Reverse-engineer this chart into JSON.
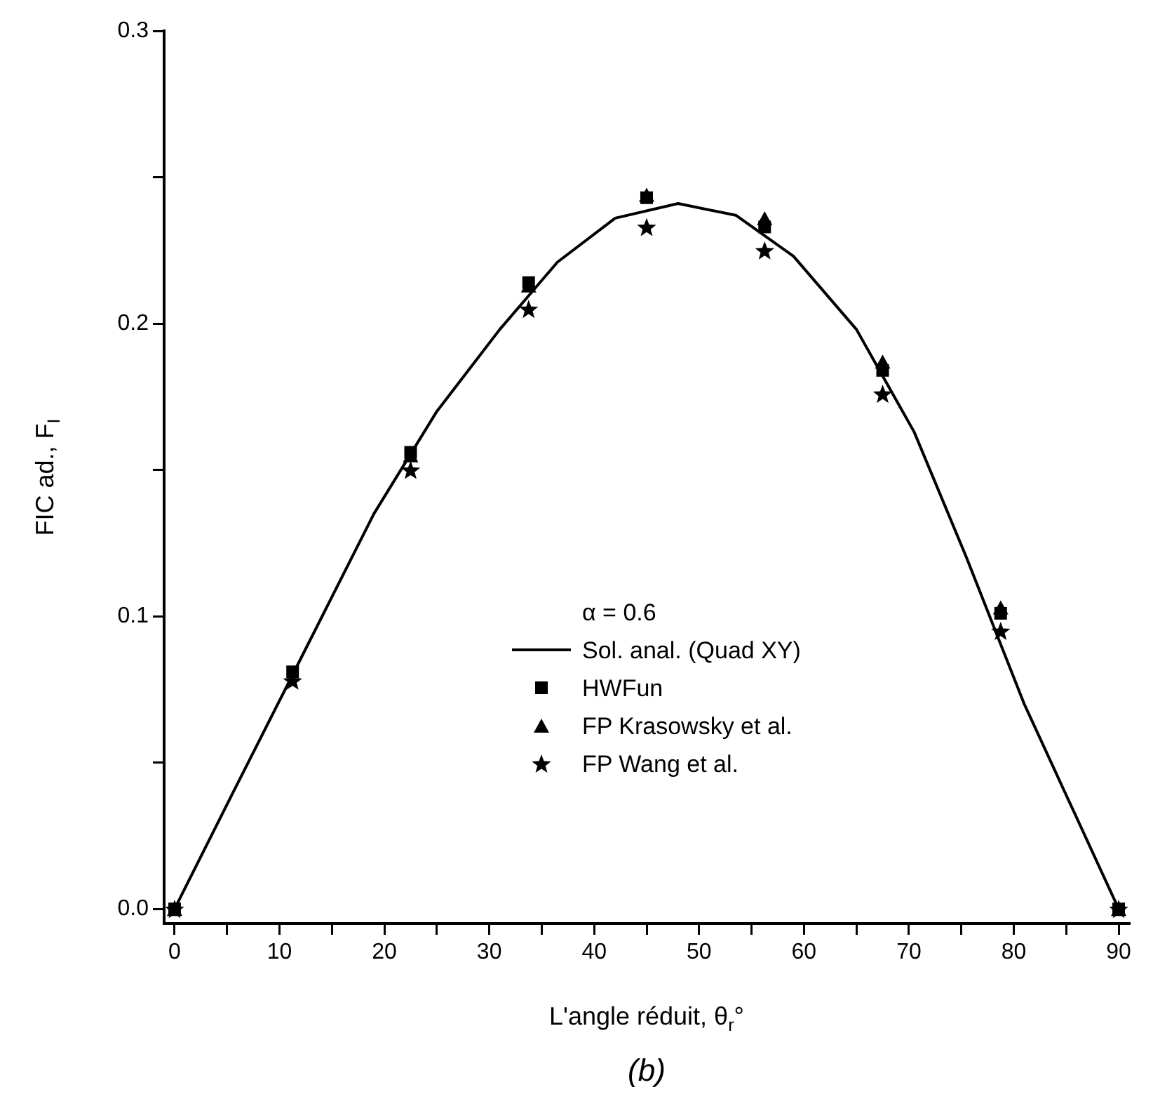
{
  "chart_data": {
    "type": "scatter",
    "xlabel": "L'angle réduit, θ$_{r}$°",
    "ylabel": "FIC ad., F$_{I}$",
    "annotations": [
      "(b)"
    ],
    "legend_title": "α = 0.6",
    "legend": "bottom",
    "grid": false,
    "xlim": [
      -1,
      91
    ],
    "xticks": [
      0,
      {
        "value": 5,
        "label": null
      },
      10,
      {
        "value": 15,
        "label": null
      },
      20,
      {
        "value": 25,
        "label": null
      },
      30,
      {
        "value": 35,
        "label": null
      },
      40,
      {
        "value": 45,
        "label": null
      },
      50,
      {
        "value": 55,
        "label": null
      },
      60,
      {
        "value": 65,
        "label": null
      },
      70,
      {
        "value": 75,
        "label": null
      },
      80,
      {
        "value": 85,
        "label": null
      },
      90
    ],
    "ylim": [
      -0.005,
      0.3
    ],
    "yticks": [
      {
        "value": 0,
        "label": "0.0"
      },
      {
        "value": 0.05,
        "label": null
      },
      {
        "value": 0.1,
        "label": "0.1"
      },
      {
        "value": 0.15,
        "label": null
      },
      {
        "value": 0.2,
        "label": "0.2"
      },
      {
        "value": 0.25,
        "label": null
      },
      {
        "value": 0.3,
        "label": "0.3"
      }
    ],
    "series": [
      {
        "name": "Sol. anal. (Quad XY)",
        "type": "line",
        "marker": "none",
        "line_style": "solid",
        "color": "#000000",
        "x": [
          0,
          5.6,
          11.25,
          19,
          25,
          31,
          36.5,
          42,
          48,
          53.5,
          59,
          65,
          70.5,
          75.5,
          81,
          90
        ],
        "values": [
          0,
          0.04,
          0.08,
          0.135,
          0.17,
          0.198,
          0.221,
          0.236,
          0.241,
          0.237,
          0.223,
          0.198,
          0.163,
          0.12,
          0.07,
          0
        ]
      },
      {
        "name": "HWFun",
        "marker": "square",
        "color": "#000000",
        "x": [
          0,
          11.25,
          22.5,
          33.75,
          45,
          56.25,
          67.5,
          78.75,
          90
        ],
        "values": [
          0,
          0.081,
          0.156,
          0.214,
          0.243,
          0.233,
          0.184,
          0.101,
          0
        ]
      },
      {
        "name": "FP Krasowsky et al.",
        "marker": "triangle",
        "color": "#000000",
        "x": [
          0,
          11.25,
          22.5,
          33.75,
          45,
          56.25,
          67.5,
          78.75,
          90
        ],
        "values": [
          0,
          null,
          0.155,
          0.213,
          0.244,
          0.236,
          0.187,
          0.103,
          0
        ]
      },
      {
        "name": "FP Wang et al.",
        "marker": "star",
        "color": "#000000",
        "x": [
          0,
          11.25,
          22.5,
          33.75,
          45,
          56.25,
          67.5,
          78.75,
          90
        ],
        "values": [
          0,
          0.078,
          0.15,
          0.205,
          0.233,
          0.225,
          0.176,
          0.095,
          0
        ]
      }
    ]
  }
}
